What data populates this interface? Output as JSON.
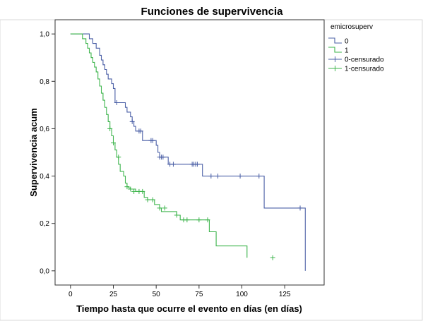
{
  "chart_data": {
    "type": "line",
    "subtype": "kaplan-meier-step",
    "title": "Funciones de supervivencia",
    "xlabel": "Tiempo hasta que ocurre el evento en días (en días)",
    "ylabel": "Supervivencia acum",
    "xlim": [
      -9,
      148
    ],
    "ylim": [
      -0.06,
      1.06
    ],
    "x_ticks": [
      0,
      25,
      50,
      75,
      100,
      125
    ],
    "x_tick_labels": [
      "0",
      "25",
      "50",
      "75",
      "100",
      "125"
    ],
    "y_ticks": [
      0.0,
      0.2,
      0.4,
      0.6,
      0.8,
      1.0
    ],
    "y_tick_labels": [
      "0,0",
      "0,2",
      "0,4",
      "0,6",
      "0,8",
      "1,0"
    ],
    "grid": false,
    "legend": {
      "placement": "right",
      "title": "emicrosuperv",
      "entries": [
        "0",
        "1",
        "0-censurado",
        "1-censurado"
      ]
    },
    "series": [
      {
        "name": "0",
        "color": "#4a5fa6",
        "x": [
          0,
          11,
          13,
          15,
          17,
          18,
          19,
          20,
          21,
          22,
          24,
          25,
          26,
          32,
          33,
          35,
          36,
          37,
          38,
          42,
          45,
          50,
          51,
          52,
          57,
          77,
          113,
          137,
          137
        ],
        "y": [
          1.0,
          0.98,
          0.96,
          0.94,
          0.91,
          0.89,
          0.87,
          0.85,
          0.83,
          0.81,
          0.79,
          0.77,
          0.71,
          0.69,
          0.67,
          0.65,
          0.63,
          0.61,
          0.59,
          0.55,
          0.55,
          0.53,
          0.5,
          0.48,
          0.45,
          0.4,
          0.265,
          0.265,
          0.0
        ],
        "censored_x": [
          27,
          36,
          40,
          41,
          47,
          48,
          52,
          53,
          54,
          58,
          60,
          71,
          72,
          73,
          74,
          82,
          86,
          99,
          110,
          134
        ],
        "censored_y": [
          0.71,
          0.63,
          0.59,
          0.59,
          0.55,
          0.55,
          0.48,
          0.48,
          0.48,
          0.45,
          0.45,
          0.45,
          0.45,
          0.45,
          0.45,
          0.4,
          0.4,
          0.4,
          0.4,
          0.265
        ]
      },
      {
        "name": "1",
        "color": "#3cb44b",
        "x": [
          0,
          7,
          9,
          10,
          11,
          12,
          13,
          14,
          15,
          16,
          17,
          18,
          19,
          20,
          21,
          22,
          23,
          24,
          25,
          26,
          27,
          28,
          29,
          31,
          32,
          33,
          34,
          35,
          38,
          43,
          45,
          49,
          52,
          53,
          62,
          64,
          81,
          85,
          103
        ],
        "y": [
          1.0,
          0.98,
          0.96,
          0.94,
          0.92,
          0.9,
          0.88,
          0.86,
          0.84,
          0.81,
          0.78,
          0.75,
          0.72,
          0.69,
          0.66,
          0.63,
          0.6,
          0.57,
          0.54,
          0.51,
          0.48,
          0.45,
          0.42,
          0.4,
          0.37,
          0.355,
          0.35,
          0.345,
          0.335,
          0.31,
          0.3,
          0.28,
          0.265,
          0.25,
          0.235,
          0.215,
          0.165,
          0.105,
          0.055
        ],
        "censored_x": [
          23,
          25,
          28,
          33,
          35,
          37,
          40,
          42,
          45,
          48,
          52,
          55,
          62,
          66,
          68,
          75,
          80,
          118
        ],
        "censored_y": [
          0.6,
          0.54,
          0.48,
          0.355,
          0.345,
          0.335,
          0.335,
          0.335,
          0.3,
          0.3,
          0.265,
          0.265,
          0.235,
          0.215,
          0.215,
          0.215,
          0.215,
          0.055
        ]
      }
    ]
  }
}
